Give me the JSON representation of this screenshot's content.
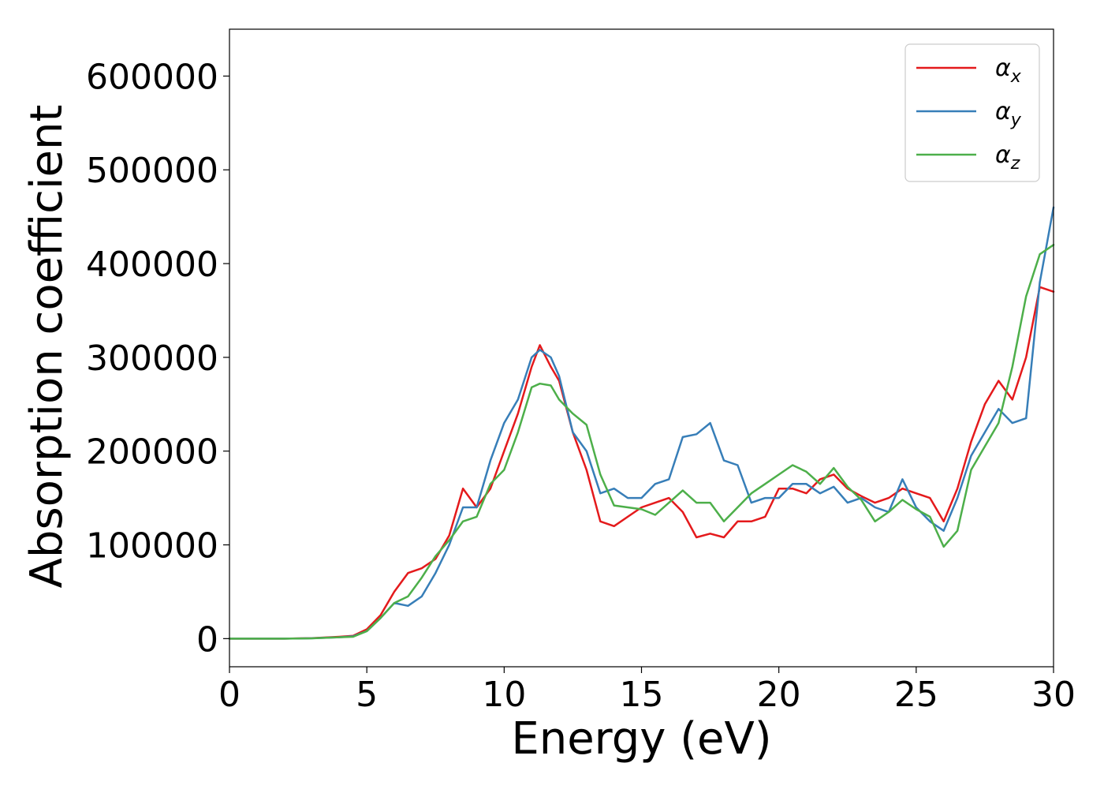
{
  "chart_data": {
    "type": "line",
    "title": "",
    "xlabel": "Energy (eV)",
    "ylabel": "Absorption coefficient",
    "xlim": [
      0,
      30
    ],
    "ylim": [
      -30000,
      650000
    ],
    "xticks": [
      0,
      5,
      10,
      15,
      20,
      25,
      30
    ],
    "yticks": [
      0,
      100000,
      200000,
      300000,
      400000,
      500000,
      600000
    ],
    "grid": false,
    "legend_position": "top-right",
    "x": [
      0,
      1,
      2,
      3,
      4,
      4.5,
      5,
      5.5,
      6,
      6.5,
      7,
      7.5,
      8,
      8.5,
      9,
      9.5,
      10,
      10.5,
      11,
      11.3,
      11.7,
      12,
      12.5,
      13,
      13.5,
      14,
      14.5,
      15,
      15.5,
      16,
      16.5,
      17,
      17.5,
      18,
      18.5,
      19,
      19.5,
      20,
      20.5,
      21,
      21.5,
      22,
      22.5,
      23,
      23.5,
      24,
      24.5,
      25,
      25.5,
      26,
      26.5,
      27,
      27.5,
      28,
      28.5,
      29,
      29.5,
      30
    ],
    "series": [
      {
        "name": "α",
        "subscript": "x",
        "color": "#e41a1c",
        "values": [
          0,
          0,
          0,
          500,
          2000,
          3000,
          10000,
          25000,
          50000,
          70000,
          75000,
          85000,
          110000,
          160000,
          140000,
          160000,
          200000,
          240000,
          290000,
          313000,
          290000,
          275000,
          220000,
          180000,
          125000,
          120000,
          130000,
          140000,
          145000,
          150000,
          135000,
          108000,
          112000,
          108000,
          125000,
          125000,
          130000,
          160000,
          160000,
          155000,
          170000,
          175000,
          160000,
          152000,
          145000,
          150000,
          160000,
          155000,
          150000,
          125000,
          160000,
          210000,
          250000,
          275000,
          255000,
          300000,
          375000,
          370000
        ]
      },
      {
        "name": "α",
        "subscript": "y",
        "color": "#377eb8",
        "values": [
          0,
          0,
          0,
          400,
          1500,
          2500,
          8000,
          22000,
          38000,
          35000,
          45000,
          70000,
          100000,
          140000,
          140000,
          190000,
          230000,
          255000,
          300000,
          308000,
          300000,
          280000,
          220000,
          200000,
          155000,
          160000,
          150000,
          150000,
          165000,
          170000,
          215000,
          218000,
          230000,
          190000,
          185000,
          145000,
          150000,
          150000,
          165000,
          165000,
          155000,
          162000,
          145000,
          150000,
          140000,
          135000,
          170000,
          140000,
          125000,
          115000,
          150000,
          195000,
          220000,
          245000,
          230000,
          235000,
          380000,
          460000
        ]
      },
      {
        "name": "α",
        "subscript": "z",
        "color": "#4daf4a",
        "values": [
          0,
          0,
          0,
          300,
          1500,
          2000,
          8000,
          22000,
          38000,
          45000,
          65000,
          88000,
          105000,
          125000,
          130000,
          165000,
          180000,
          220000,
          268000,
          272000,
          270000,
          255000,
          240000,
          228000,
          175000,
          142000,
          140000,
          138000,
          132000,
          145000,
          158000,
          145000,
          145000,
          125000,
          140000,
          155000,
          165000,
          175000,
          185000,
          178000,
          165000,
          182000,
          162000,
          148000,
          125000,
          135000,
          148000,
          138000,
          130000,
          98000,
          115000,
          180000,
          205000,
          230000,
          290000,
          365000,
          410000,
          420000
        ]
      }
    ]
  }
}
